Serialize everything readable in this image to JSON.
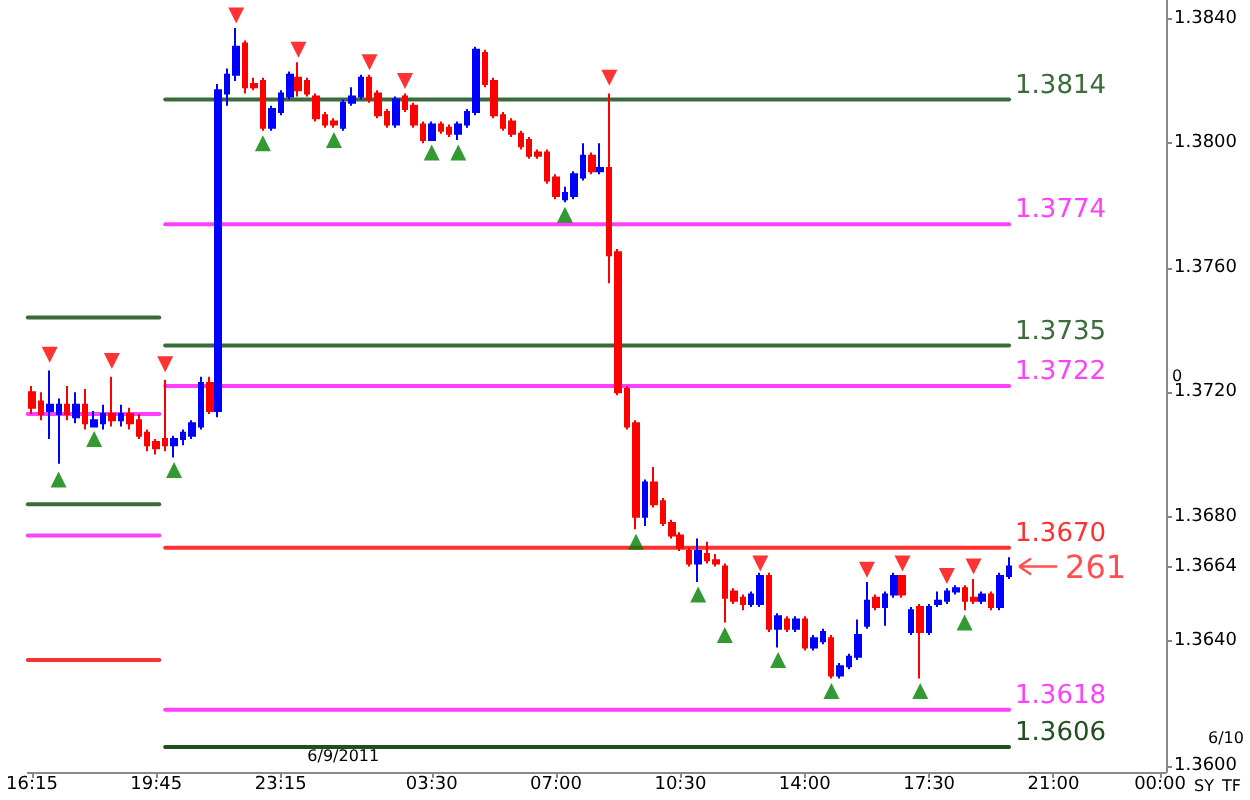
{
  "chart_data": {
    "type": "candlestick",
    "x": [
      "2011-06-08T16:15",
      "2011-06-08T16:30",
      "2011-06-08T16:45",
      "2011-06-08T17:00",
      "2011-06-08T17:15",
      "2011-06-08T17:30",
      "2011-06-08T17:45",
      "2011-06-08T18:00",
      "2011-06-08T18:15",
      "2011-06-08T18:30",
      "2011-06-08T18:45",
      "2011-06-08T19:00",
      "2011-06-08T19:15",
      "2011-06-08T19:30",
      "2011-06-08T19:45",
      "2011-06-08T20:00",
      "2011-06-08T20:15",
      "2011-06-08T20:30",
      "2011-06-08T20:45",
      "2011-06-08T21:00",
      "2011-06-08T21:15",
      "2011-06-08T21:30",
      "2011-06-08T21:45",
      "2011-06-08T22:00",
      "2011-06-08T22:15",
      "2011-06-08T22:30",
      "2011-06-08T22:45",
      "2011-06-08T23:00",
      "2011-06-08T23:15",
      "2011-06-08T23:30",
      "2011-06-08T23:45",
      "2011-06-09T00:00",
      "2011-06-09T00:15",
      "2011-06-09T00:30",
      "2011-06-09T00:45",
      "2011-06-09T01:00",
      "2011-06-09T01:15",
      "2011-06-09T01:30",
      "2011-06-09T01:45",
      "2011-06-09T02:00",
      "2011-06-09T02:15",
      "2011-06-09T02:30",
      "2011-06-09T02:45",
      "2011-06-09T03:00",
      "2011-06-09T03:15",
      "2011-06-09T03:30",
      "2011-06-09T03:45",
      "2011-06-09T04:00",
      "2011-06-09T04:15",
      "2011-06-09T04:30",
      "2011-06-09T04:45",
      "2011-06-09T05:00",
      "2011-06-09T05:15",
      "2011-06-09T05:30",
      "2011-06-09T05:45",
      "2011-06-09T06:00",
      "2011-06-09T06:15",
      "2011-06-09T06:30",
      "2011-06-09T06:45",
      "2011-06-09T07:00",
      "2011-06-09T07:15",
      "2011-06-09T07:30",
      "2011-06-09T07:45",
      "2011-06-09T08:00",
      "2011-06-09T08:15",
      "2011-06-09T08:30",
      "2011-06-09T08:45",
      "2011-06-09T09:00",
      "2011-06-09T09:15",
      "2011-06-09T09:30",
      "2011-06-09T09:45",
      "2011-06-09T10:00",
      "2011-06-09T10:15",
      "2011-06-09T10:30",
      "2011-06-09T10:45",
      "2011-06-09T11:00",
      "2011-06-09T11:15",
      "2011-06-09T11:30",
      "2011-06-09T11:45",
      "2011-06-09T12:00",
      "2011-06-09T12:15",
      "2011-06-09T12:30",
      "2011-06-09T12:45",
      "2011-06-09T13:00",
      "2011-06-09T13:15",
      "2011-06-09T13:30",
      "2011-06-09T13:45",
      "2011-06-09T14:00",
      "2011-06-09T14:15",
      "2011-06-09T14:30",
      "2011-06-09T14:45",
      "2011-06-09T15:00",
      "2011-06-09T15:15",
      "2011-06-09T15:30",
      "2011-06-09T15:45",
      "2011-06-09T16:00",
      "2011-06-09T16:15",
      "2011-06-09T16:30",
      "2011-06-09T16:45",
      "2011-06-09T17:00",
      "2011-06-09T17:15",
      "2011-06-09T17:30",
      "2011-06-09T17:45",
      "2011-06-09T18:00",
      "2011-06-09T18:15",
      "2011-06-09T18:30",
      "2011-06-09T18:45",
      "2011-06-09T19:00",
      "2011-06-09T19:15",
      "2011-06-09T19:30",
      "2011-06-09T19:45"
    ],
    "ohlc": [
      [
        1.372,
        1.3722,
        1.3713,
        1.3715
      ],
      [
        1.3717,
        1.372,
        1.3711,
        1.3713
      ],
      [
        1.3714,
        1.3727,
        1.3705,
        1.3716
      ],
      [
        1.3713,
        1.3718,
        1.3697,
        1.3716
      ],
      [
        1.3716,
        1.3722,
        1.3711,
        1.3713
      ],
      [
        1.3712,
        1.372,
        1.371,
        1.3716
      ],
      [
        1.3716,
        1.3721,
        1.3708,
        1.371
      ],
      [
        1.3709,
        1.3714,
        1.3709,
        1.3711
      ],
      [
        1.371,
        1.3716,
        1.3708,
        1.3713
      ],
      [
        1.3713,
        1.3725,
        1.3709,
        1.3711
      ],
      [
        1.3711,
        1.3716,
        1.3709,
        1.3713
      ],
      [
        1.3713,
        1.3715,
        1.3708,
        1.371
      ],
      [
        1.3711,
        1.3713,
        1.3705,
        1.3706
      ],
      [
        1.3707,
        1.3708,
        1.3701,
        1.3703
      ],
      [
        1.3704,
        1.3705,
        1.37,
        1.3702
      ],
      [
        1.3705,
        1.3724,
        1.3701,
        1.3703
      ],
      [
        1.3703,
        1.3706,
        1.3699,
        1.3705
      ],
      [
        1.3705,
        1.3708,
        1.3703,
        1.3707
      ],
      [
        1.3706,
        1.3711,
        1.3705,
        1.371
      ],
      [
        1.3709,
        1.3725,
        1.3708,
        1.3723
      ],
      [
        1.3723,
        1.3725,
        1.3713,
        1.3714
      ],
      [
        1.3714,
        1.3819,
        1.3712,
        1.3817
      ],
      [
        1.3816,
        1.3824,
        1.3812,
        1.3822
      ],
      [
        1.3822,
        1.3837,
        1.382,
        1.3831
      ],
      [
        1.3832,
        1.3833,
        1.3816,
        1.3818
      ],
      [
        1.3819,
        1.3821,
        1.3817,
        1.3818
      ],
      [
        1.382,
        1.3821,
        1.3804,
        1.3805
      ],
      [
        1.3805,
        1.3812,
        1.3804,
        1.3811
      ],
      [
        1.381,
        1.3817,
        1.3809,
        1.3816
      ],
      [
        1.3815,
        1.3823,
        1.3814,
        1.3822
      ],
      [
        1.3821,
        1.3826,
        1.3815,
        1.3817
      ],
      [
        1.382,
        1.3821,
        1.3815,
        1.3816
      ],
      [
        1.3815,
        1.3816,
        1.3807,
        1.3808
      ],
      [
        1.3809,
        1.381,
        1.3805,
        1.3806
      ],
      [
        1.3807,
        1.3808,
        1.3805,
        1.3806
      ],
      [
        1.3805,
        1.3814,
        1.3804,
        1.3813
      ],
      [
        1.3813,
        1.3818,
        1.3812,
        1.3815
      ],
      [
        1.3815,
        1.3822,
        1.3814,
        1.3821
      ],
      [
        1.3821,
        1.3822,
        1.3813,
        1.3814
      ],
      [
        1.3816,
        1.3817,
        1.3808,
        1.3809
      ],
      [
        1.381,
        1.3811,
        1.3805,
        1.3806
      ],
      [
        1.3806,
        1.3815,
        1.3805,
        1.3814
      ],
      [
        1.3815,
        1.3816,
        1.381,
        1.3811
      ],
      [
        1.3812,
        1.3813,
        1.3805,
        1.3806
      ],
      [
        1.3806,
        1.3807,
        1.38,
        1.3801
      ],
      [
        1.3801,
        1.3807,
        1.3801,
        1.3806
      ],
      [
        1.3806,
        1.3807,
        1.3803,
        1.3804
      ],
      [
        1.3805,
        1.3806,
        1.3802,
        1.3803
      ],
      [
        1.3803,
        1.3807,
        1.3801,
        1.3806
      ],
      [
        1.3806,
        1.3811,
        1.3805,
        1.381
      ],
      [
        1.381,
        1.3831,
        1.3809,
        1.383
      ],
      [
        1.3829,
        1.383,
        1.3818,
        1.3819
      ],
      [
        1.382,
        1.3821,
        1.3808,
        1.3809
      ],
      [
        1.3809,
        1.381,
        1.3804,
        1.3805
      ],
      [
        1.3807,
        1.3808,
        1.3802,
        1.3803
      ],
      [
        1.3803,
        1.3804,
        1.3798,
        1.3799
      ],
      [
        1.3801,
        1.3802,
        1.3795,
        1.3796
      ],
      [
        1.3797,
        1.3798,
        1.3795,
        1.3796
      ],
      [
        1.3797,
        1.3798,
        1.3787,
        1.3788
      ],
      [
        1.3789,
        1.379,
        1.3782,
        1.3783
      ],
      [
        1.3782,
        1.3786,
        1.3781,
        1.3784
      ],
      [
        1.3783,
        1.3791,
        1.3782,
        1.379
      ],
      [
        1.3789,
        1.38,
        1.3788,
        1.3796
      ],
      [
        1.3796,
        1.3797,
        1.379,
        1.3791
      ],
      [
        1.3791,
        1.38,
        1.379,
        1.3792
      ],
      [
        1.3792,
        1.3816,
        1.3755,
        1.3764
      ],
      [
        1.3765,
        1.3766,
        1.3719,
        1.372
      ],
      [
        1.3721,
        1.3722,
        1.3708,
        1.3709
      ],
      [
        1.371,
        1.3711,
        1.3676,
        1.368
      ],
      [
        1.368,
        1.3692,
        1.3677,
        1.3691
      ],
      [
        1.3691,
        1.3696,
        1.3683,
        1.3684
      ],
      [
        1.3685,
        1.3686,
        1.3677,
        1.3678
      ],
      [
        1.3678,
        1.3679,
        1.3673,
        1.3674
      ],
      [
        1.3674,
        1.3675,
        1.3669,
        1.367
      ],
      [
        1.3669,
        1.367,
        1.3664,
        1.3665
      ],
      [
        1.3665,
        1.3673,
        1.3659,
        1.3669
      ],
      [
        1.3668,
        1.3672,
        1.3665,
        1.3666
      ],
      [
        1.3666,
        1.3668,
        1.3664,
        1.3665
      ],
      [
        1.3664,
        1.3665,
        1.3646,
        1.3654
      ],
      [
        1.3656,
        1.3657,
        1.3652,
        1.3653
      ],
      [
        1.3654,
        1.3655,
        1.365,
        1.3652
      ],
      [
        1.3652,
        1.3656,
        1.3651,
        1.3655
      ],
      [
        1.3652,
        1.3662,
        1.3651,
        1.3661
      ],
      [
        1.3661,
        1.3662,
        1.3643,
        1.3644
      ],
      [
        1.3644,
        1.3649,
        1.3638,
        1.3648
      ],
      [
        1.3647,
        1.3648,
        1.3643,
        1.3644
      ],
      [
        1.3644,
        1.3648,
        1.3643,
        1.3647
      ],
      [
        1.3647,
        1.3648,
        1.3637,
        1.3638
      ],
      [
        1.3638,
        1.3642,
        1.3637,
        1.3641
      ],
      [
        1.364,
        1.3644,
        1.3639,
        1.3643
      ],
      [
        1.3641,
        1.3642,
        1.3628,
        1.3629
      ],
      [
        1.3629,
        1.3633,
        1.3628,
        1.3632
      ],
      [
        1.3632,
        1.3636,
        1.3631,
        1.3635
      ],
      [
        1.3635,
        1.3647,
        1.3634,
        1.3642
      ],
      [
        1.3645,
        1.3659,
        1.3644,
        1.3653
      ],
      [
        1.3654,
        1.3655,
        1.365,
        1.3651
      ],
      [
        1.3651,
        1.3656,
        1.3645,
        1.3655
      ],
      [
        1.3655,
        1.3662,
        1.3654,
        1.3661
      ],
      [
        1.3661,
        1.3661,
        1.3654,
        1.3655
      ],
      [
        1.3643,
        1.3651,
        1.3642,
        1.365
      ],
      [
        1.3651,
        1.3652,
        1.3628,
        1.3643
      ],
      [
        1.3643,
        1.3652,
        1.3642,
        1.3651
      ],
      [
        1.3652,
        1.3656,
        1.3651,
        1.3653
      ],
      [
        1.3653,
        1.3657,
        1.3652,
        1.3656
      ],
      [
        1.3656,
        1.3658,
        1.3655,
        1.3657
      ],
      [
        1.3657,
        1.3658,
        1.365,
        1.3653
      ],
      [
        1.3654,
        1.366,
        1.3652,
        1.3653
      ],
      [
        1.3653,
        1.3656,
        1.3652,
        1.3655
      ],
      [
        1.3655,
        1.3656,
        1.365,
        1.3651
      ],
      [
        1.3651,
        1.3662,
        1.365,
        1.3661
      ],
      [
        1.3661,
        1.3667,
        1.366,
        1.3664
      ]
    ],
    "colors": [
      "#ff0000",
      "#ff0000",
      "#0000ff",
      "#0000ff",
      "#ff0000",
      "#0000ff",
      "#ff0000",
      "#0000ff",
      "#0000ff",
      "#ff0000",
      "#0000ff",
      "#ff0000",
      "#ff0000",
      "#ff0000",
      "#ff0000",
      "#ff0000",
      "#0000ff",
      "#0000ff",
      "#0000ff",
      "#0000ff",
      "#ff0000",
      "#0000ff",
      "#0000ff",
      "#0000ff",
      "#ff0000",
      "#ff0000",
      "#ff0000",
      "#0000ff",
      "#0000ff",
      "#0000ff",
      "#ff0000",
      "#ff0000",
      "#ff0000",
      "#ff0000",
      "#ff0000",
      "#0000ff",
      "#0000ff",
      "#0000ff",
      "#ff0000",
      "#ff0000",
      "#ff0000",
      "#0000ff",
      "#ff0000",
      "#ff0000",
      "#ff0000",
      "#0000ff",
      "#ff0000",
      "#ff0000",
      "#0000ff",
      "#0000ff",
      "#0000ff",
      "#ff0000",
      "#ff0000",
      "#ff0000",
      "#ff0000",
      "#ff0000",
      "#ff0000",
      "#ff0000",
      "#ff0000",
      "#ff0000",
      "#0000ff",
      "#0000ff",
      "#0000ff",
      "#ff0000",
      "#0000ff",
      "#ff0000",
      "#ff0000",
      "#ff0000",
      "#ff0000",
      "#0000ff",
      "#ff0000",
      "#ff0000",
      "#ff0000",
      "#ff0000",
      "#ff0000",
      "#0000ff",
      "#ff0000",
      "#ff0000",
      "#ff0000",
      "#ff0000",
      "#ff0000",
      "#0000ff",
      "#0000ff",
      "#ff0000",
      "#0000ff",
      "#ff0000",
      "#0000ff",
      "#ff0000",
      "#0000ff",
      "#0000ff",
      "#ff0000",
      "#0000ff",
      "#0000ff",
      "#0000ff",
      "#0000ff",
      "#ff0000",
      "#0000ff",
      "#0000ff",
      "#ff0000",
      "#0000ff",
      "#ff0000",
      "#0000ff",
      "#0000ff",
      "#0000ff",
      "#0000ff",
      "#ff0000",
      "#ff0000",
      "#0000ff",
      "#ff0000",
      "#0000ff",
      "#0000ff"
    ],
    "series": [
      {
        "type": "line",
        "marker": "none",
        "x": [
          "2011-06-08T20:00",
          "2011-06-09T19:45"
        ],
        "values": [
          1.3814,
          1.3814
        ],
        "color": "#3a6b3a",
        "value_labels": [
          null,
          "1.3814"
        ]
      },
      {
        "type": "line",
        "marker": "none",
        "x": [
          "2011-06-08T20:00",
          "2011-06-09T19:45"
        ],
        "values": [
          1.3774,
          1.3774
        ],
        "color": "#ff40ff",
        "value_labels": [
          null,
          "1.3774"
        ]
      },
      {
        "type": "line",
        "marker": "none",
        "x": [
          "2011-06-08T20:00",
          "2011-06-09T19:45"
        ],
        "values": [
          1.3735,
          1.3735
        ],
        "color": "#3a6b3a",
        "value_labels": [
          null,
          "1.3735"
        ]
      },
      {
        "type": "line",
        "marker": "none",
        "x": [
          "2011-06-08T20:00",
          "2011-06-09T19:45"
        ],
        "values": [
          1.3722,
          1.3722
        ],
        "color": "#ff40ff",
        "value_labels": [
          null,
          "1.3722"
        ]
      },
      {
        "type": "line",
        "marker": "none",
        "x": [
          "2011-06-08T20:00",
          "2011-06-09T19:45"
        ],
        "values": [
          1.367,
          1.367
        ],
        "color": "#ff3030",
        "value_labels": [
          null,
          "1.3670"
        ]
      },
      {
        "type": "line",
        "marker": "none",
        "x": [
          "2011-06-08T20:00",
          "2011-06-09T19:45"
        ],
        "values": [
          1.3618,
          1.3618
        ],
        "color": "#ff40ff",
        "value_labels": [
          null,
          "1.3618"
        ]
      },
      {
        "type": "line",
        "marker": "none",
        "x": [
          "2011-06-08T20:00",
          "2011-06-09T19:45"
        ],
        "values": [
          1.3606,
          1.3606
        ],
        "color": "#1f4f1f",
        "value_labels": [
          null,
          "1.3606"
        ]
      },
      {
        "type": "line",
        "marker": "none",
        "x": [
          "2011-06-08T16:08",
          "2011-06-08T19:50"
        ],
        "values": [
          1.3744,
          1.3744
        ],
        "color": "#3a6b3a"
      },
      {
        "type": "line",
        "marker": "none",
        "x": [
          "2011-06-08T16:08",
          "2011-06-08T19:50"
        ],
        "values": [
          1.3713,
          1.3713
        ],
        "color": "#ff40ff"
      },
      {
        "type": "line",
        "marker": "none",
        "x": [
          "2011-06-08T16:08",
          "2011-06-08T19:50"
        ],
        "values": [
          1.3684,
          1.3684
        ],
        "color": "#3a6b3a"
      },
      {
        "type": "line",
        "marker": "none",
        "x": [
          "2011-06-08T16:08",
          "2011-06-08T19:50"
        ],
        "values": [
          1.3674,
          1.3674
        ],
        "color": "#ff40ff"
      },
      {
        "type": "line",
        "marker": "none",
        "x": [
          "2011-06-08T16:08",
          "2011-06-08T19:50"
        ],
        "values": [
          1.3634,
          1.3634
        ],
        "color": "#ff3030"
      },
      {
        "type": "scatter",
        "marker": "triangle",
        "color": "#ff0000",
        "x": [
          "2011-06-08T16:45",
          "2011-06-08T18:30",
          "2011-06-08T20:00",
          "2011-06-08T22:00",
          "2011-06-08T23:45",
          "2011-06-09T01:45",
          "2011-06-09T02:45",
          "2011-06-09T08:30",
          "2011-06-09T12:45",
          "2011-06-09T15:45",
          "2011-06-09T16:45",
          "2011-06-09T18:00",
          "2011-06-09T18:45"
        ],
        "values": [
          1.3732,
          1.373,
          1.3729,
          1.3841,
          1.383,
          1.3826,
          1.382,
          1.3821,
          1.3665,
          1.3663,
          1.3665,
          1.3661,
          1.3664
        ]
      },
      {
        "type": "scatter",
        "marker": "triangle",
        "color": "#008000",
        "x": [
          "2011-06-08T17:00",
          "2011-06-08T18:00",
          "2011-06-08T20:15",
          "2011-06-08T22:45",
          "2011-06-09T00:45",
          "2011-06-09T03:30",
          "2011-06-09T04:15",
          "2011-06-09T07:15",
          "2011-06-09T09:15",
          "2011-06-09T11:00",
          "2011-06-09T11:45",
          "2011-06-09T13:15",
          "2011-06-09T14:45",
          "2011-06-09T17:15",
          "2011-06-09T18:30"
        ],
        "values": [
          1.3692,
          1.3705,
          1.3695,
          1.38,
          1.3801,
          1.3797,
          1.3797,
          1.3777,
          1.3672,
          1.3655,
          1.3642,
          1.3634,
          1.3624,
          1.3624,
          1.3646
        ]
      }
    ],
    "xlim": [
      "2011-06-08T16:08",
      "2011-06-10T00:10"
    ],
    "xticks": [
      {
        "value": "2011-06-08T16:15",
        "label": "16:15"
      },
      {
        "value": "2011-06-08T19:45",
        "label": "19:45"
      },
      {
        "value": "2011-06-08T23:15",
        "label": "23:15"
      },
      {
        "value": "2011-06-09T03:30",
        "label": "03:30"
      },
      {
        "value": "2011-06-09T07:00",
        "label": "07:00"
      },
      {
        "value": "2011-06-09T10:30",
        "label": "10:30"
      },
      {
        "value": "2011-06-09T14:00",
        "label": "14:00"
      },
      {
        "value": "2011-06-09T17:30",
        "label": "17:30"
      },
      {
        "value": "2011-06-09T21:00",
        "label": "21:00"
      },
      {
        "value": "2011-06-10T00:00",
        "label": "00:00"
      }
    ],
    "ylim": [
      1.3598,
      1.3846
    ],
    "yticks": [
      {
        "value": 1.36,
        "label": "1.3600"
      },
      {
        "value": 1.364,
        "label": "1.3640"
      },
      1.3664,
      {
        "value": 1.368,
        "label": "1.3680"
      },
      {
        "value": 1.372,
        "label": "1.3720"
      },
      {
        "value": 1.376,
        "label": "1.3760"
      },
      {
        "value": 1.38,
        "label": "1.3800"
      },
      {
        "value": 1.384,
        "label": "1.3840"
      }
    ],
    "grid": false,
    "annotations": [
      {
        "text": "261",
        "x": "2011-06-09T19:45",
        "y": 1.3664
      },
      {
        "text": "6/9/2011",
        "x": "2011-06-09T00:00"
      },
      "0",
      "6/10",
      "SY",
      "TF"
    ]
  }
}
